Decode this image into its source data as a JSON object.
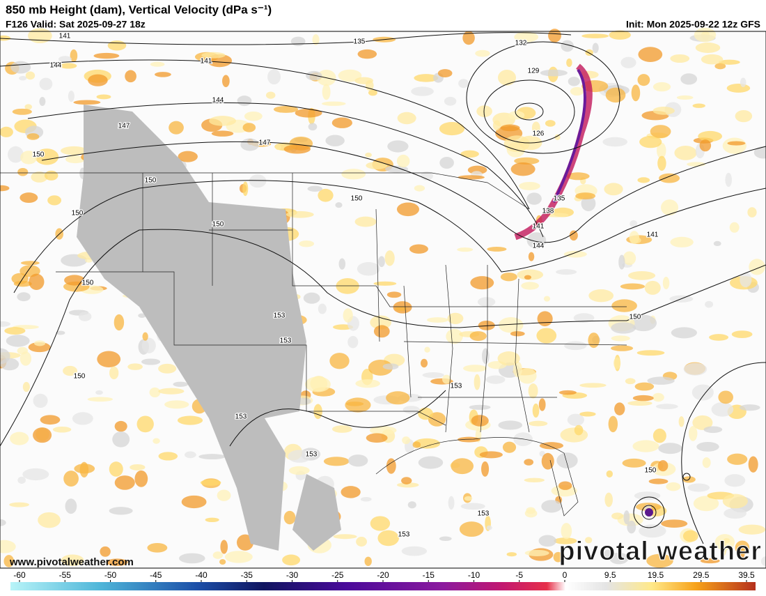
{
  "header": {
    "title": "850 mb Height (dam), Vertical Velocity (dPa s⁻¹)",
    "valid": "F126 Valid: Sat 2025-09-27 18z",
    "init": "Init: Mon 2025-09-22 12z GFS"
  },
  "contour_labels": [
    141,
    144,
    141,
    135,
    132,
    129,
    126,
    144,
    147,
    147,
    150,
    150,
    150,
    150,
    150,
    138,
    141,
    144,
    135,
    141,
    150,
    150,
    153,
    153,
    150,
    153,
    153,
    153,
    150,
    153,
    153
  ],
  "colorbar": {
    "ticks": [
      -60,
      -55,
      -50,
      -45,
      -40,
      -35,
      -30,
      -25,
      -20,
      -15,
      -10,
      -5,
      0,
      9.5,
      19.5,
      29.5,
      39.5
    ]
  },
  "footer": {
    "website": "www.pivotalweather.com",
    "logo": "pivotal weather"
  }
}
